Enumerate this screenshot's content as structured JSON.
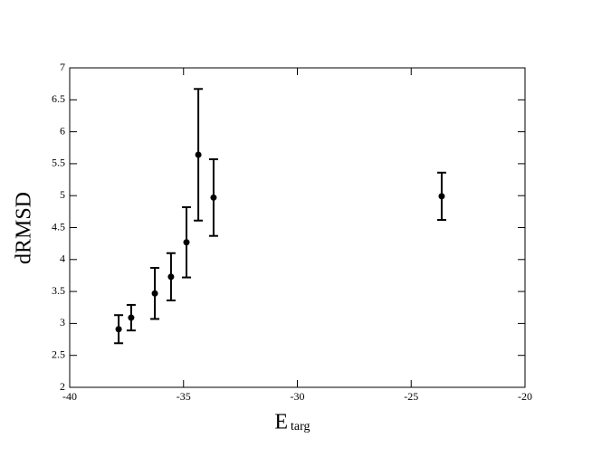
{
  "chart_data": {
    "type": "scatter",
    "x_label": "E",
    "x_label_sub": "targ",
    "y_label": "dRMSD",
    "x": [
      -37.85,
      -37.3,
      -36.26,
      -35.55,
      -34.87,
      -34.35,
      -33.68,
      -23.66
    ],
    "values": [
      2.91,
      3.09,
      3.47,
      3.73,
      4.27,
      5.64,
      4.97,
      4.99
    ],
    "errors": [
      0.22,
      0.2,
      0.4,
      0.37,
      0.55,
      1.03,
      0.6,
      0.37
    ],
    "color": "#000000",
    "xlim": [
      -40,
      -20
    ],
    "xticks": [
      -40,
      -35,
      -30,
      -25,
      -20
    ],
    "ylim": [
      2,
      7
    ],
    "yticks": [
      2,
      2.5,
      3,
      3.5,
      4,
      4.5,
      5,
      5.5,
      6,
      6.5,
      7
    ]
  }
}
